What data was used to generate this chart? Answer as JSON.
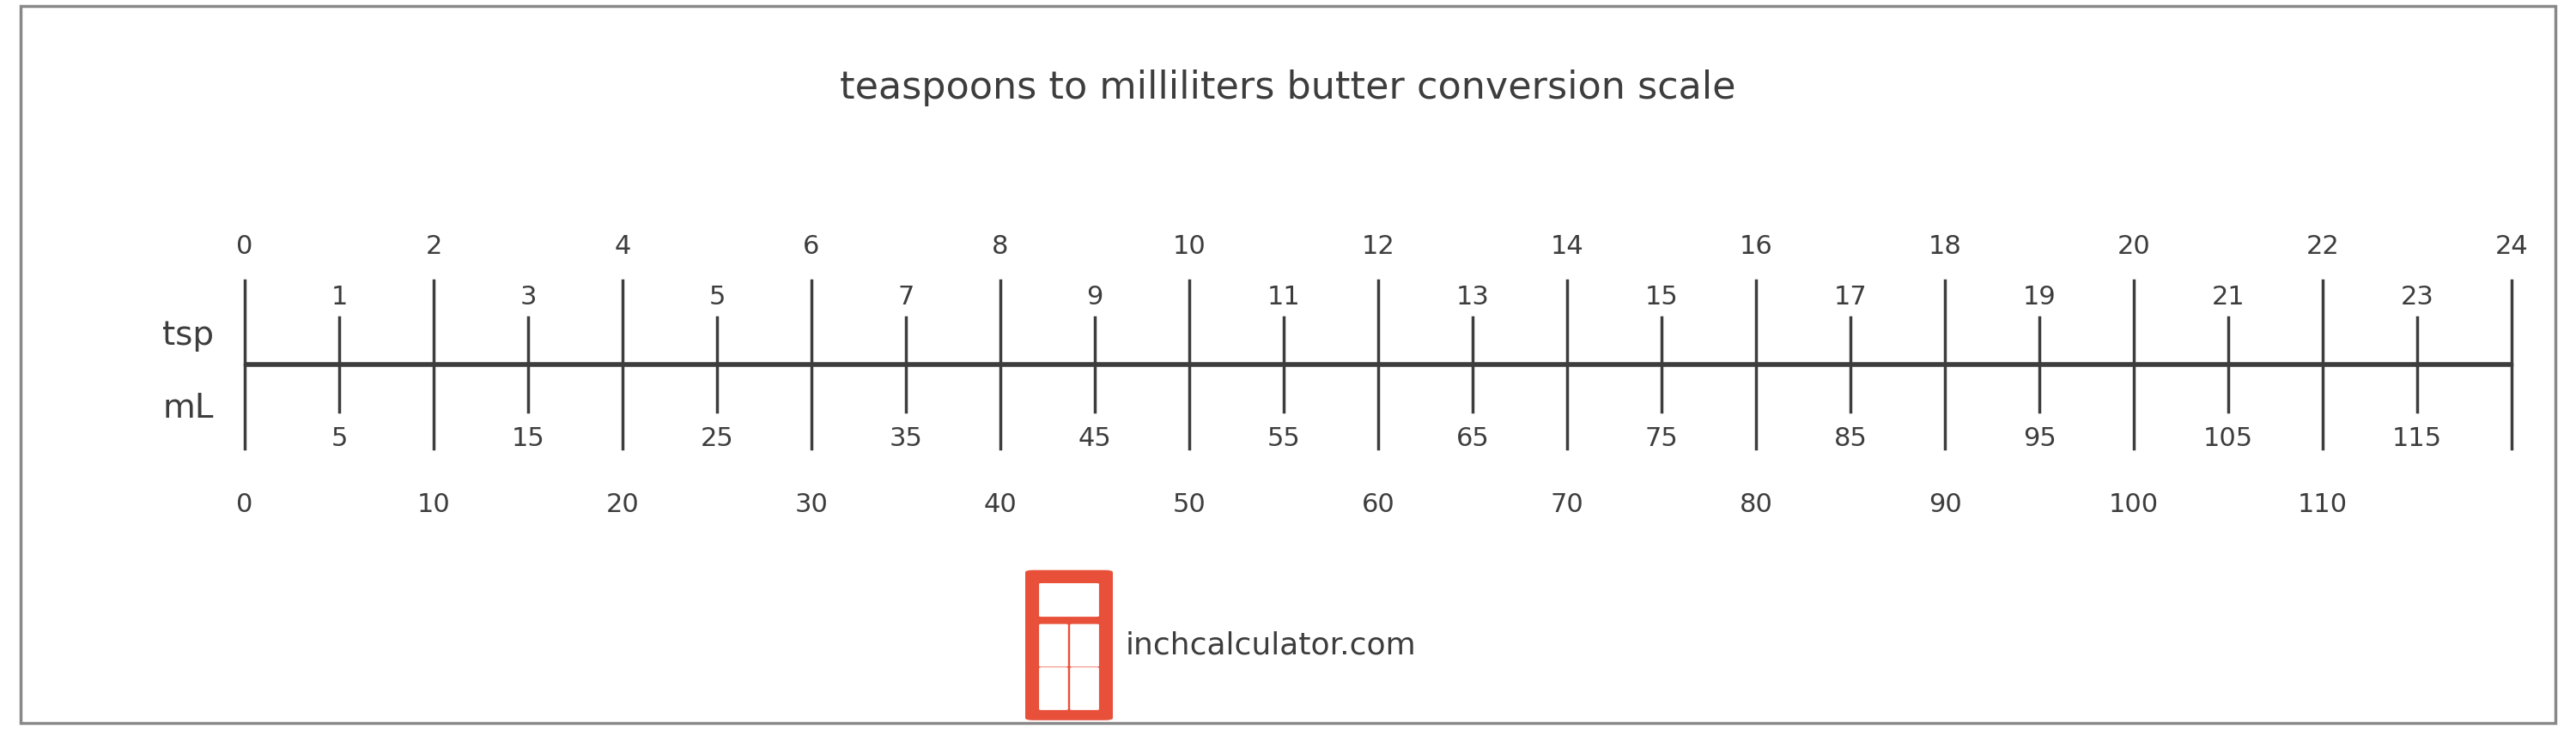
{
  "title": "teaspoons to milliliters butter conversion scale",
  "title_fontsize": 32,
  "tsp_label": "tsp",
  "ml_label": "mL",
  "tsp_max": 24,
  "background_color": "#ffffff",
  "line_color": "#3d3d3d",
  "text_color": "#3d3d3d",
  "watermark_text": "inchcalculator.com",
  "watermark_color": "#3d3d3d",
  "icon_color": "#e8503a",
  "border_color": "#888888",
  "ml_per_tsp": 4.92892,
  "label_fontsize": 22,
  "axis_label_fontsize": 28
}
